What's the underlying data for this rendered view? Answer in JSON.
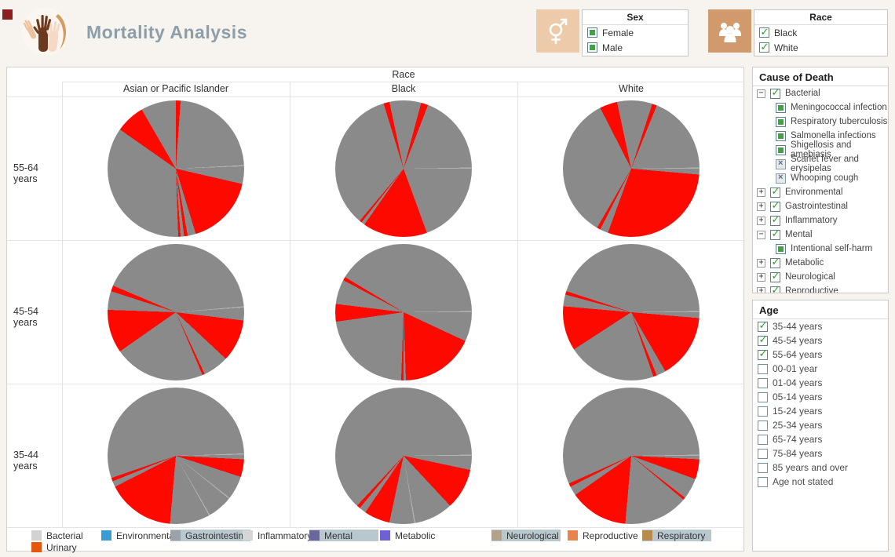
{
  "header": {
    "title": "Mortality Analysis"
  },
  "icons": {
    "logo": "hands-circle",
    "sex": "male-female-symbol",
    "race": "people-group",
    "expander_expanded": "−",
    "expander_collapsed": "+",
    "checkbox_checked": "✓",
    "checkbox_excluded": "×"
  },
  "filters": {
    "sex": {
      "title": "Sex",
      "items": [
        {
          "label": "Female",
          "state": "filled"
        },
        {
          "label": "Male",
          "state": "filled"
        }
      ]
    },
    "race": {
      "title": "Race",
      "items": [
        {
          "label": "Black",
          "state": "checked"
        },
        {
          "label": "White",
          "state": "checked"
        }
      ]
    }
  },
  "cause_panel": {
    "title": "Cause of Death",
    "items": [
      {
        "label": "Bacterial",
        "level": 0,
        "expander": "minus",
        "state": "checked"
      },
      {
        "label": "Meningococcal infection",
        "level": 1,
        "expander": "none",
        "state": "filled"
      },
      {
        "label": "Respiratory tuberculosis",
        "level": 1,
        "expander": "none",
        "state": "filled"
      },
      {
        "label": "Salmonella infections",
        "level": 1,
        "expander": "none",
        "state": "filled"
      },
      {
        "label": "Shigellosis and amebiasis",
        "level": 1,
        "expander": "none",
        "state": "filled"
      },
      {
        "label": "Scarlet fever and erysipelas",
        "level": 1,
        "expander": "none",
        "state": "xmark"
      },
      {
        "label": "Whooping cough",
        "level": 1,
        "expander": "none",
        "state": "xmark"
      },
      {
        "label": "Environmental",
        "level": 0,
        "expander": "plus",
        "state": "checked"
      },
      {
        "label": "Gastrointestinal",
        "level": 0,
        "expander": "plus",
        "state": "checked"
      },
      {
        "label": "Inflammatory",
        "level": 0,
        "expander": "plus",
        "state": "checked"
      },
      {
        "label": "Mental",
        "level": 0,
        "expander": "minus",
        "state": "checked"
      },
      {
        "label": "Intentional self-harm",
        "level": 1,
        "expander": "none",
        "state": "filled"
      },
      {
        "label": "Metabolic",
        "level": 0,
        "expander": "plus",
        "state": "checked"
      },
      {
        "label": "Neurological",
        "level": 0,
        "expander": "plus",
        "state": "checked"
      },
      {
        "label": "Reproductive",
        "level": 0,
        "expander": "plus",
        "state": "checked"
      }
    ]
  },
  "age_panel": {
    "title": "Age",
    "items": [
      {
        "label": "35-44 years",
        "state": "checked"
      },
      {
        "label": "45-54 years",
        "state": "checked"
      },
      {
        "label": "55-64 years",
        "state": "checked"
      },
      {
        "label": "00-01 year",
        "state": "empty"
      },
      {
        "label": "01-04 years",
        "state": "empty"
      },
      {
        "label": "05-14 years",
        "state": "empty"
      },
      {
        "label": "15-24 years",
        "state": "empty"
      },
      {
        "label": "25-34 years",
        "state": "empty"
      },
      {
        "label": "65-74 years",
        "state": "empty"
      },
      {
        "label": "75-84 years",
        "state": "empty"
      },
      {
        "label": "85 years and over",
        "state": "empty"
      },
      {
        "label": "Age not stated",
        "state": "empty"
      }
    ]
  },
  "legend": {
    "highlight_background": "#b9c7ce",
    "rows": [
      [
        {
          "label": "Bacterial",
          "color": "#d2d2d2",
          "highlighted": false
        },
        {
          "label": "Environmental",
          "color": "#3a9bd5",
          "highlighted": false
        },
        {
          "label": "Gastrointestinal",
          "color": "#9ba3a8",
          "highlighted": true
        },
        {
          "label": "Inflammatory",
          "color": "#d6d6d6",
          "highlighted": false
        },
        {
          "label": "Mental",
          "color": "#6a679b",
          "highlighted": true
        },
        {
          "label": "Metabolic",
          "color": "#7061d2",
          "highlighted": false
        },
        {
          "label": "Neurological",
          "color": "#b2a28b",
          "highlighted": true
        },
        {
          "label": "Reproductive",
          "color": "#e8824e",
          "highlighted": false
        },
        {
          "label": "Respiratory",
          "color": "#b98a4e",
          "highlighted": true
        }
      ],
      [
        {
          "label": "Urinary",
          "color": "#e5570e",
          "highlighted": false
        }
      ]
    ]
  },
  "chart_data": {
    "type": "pie",
    "title": "Mortality Analysis — share of deaths by cause; red slices = highlighted causes (Gastrointestinal, Mental, Neurological, Respiratory), gray = other causes",
    "facet_columns_header": "Race",
    "columns": [
      "Asian or Pacific Islander",
      "Black",
      "White"
    ],
    "rows": [
      "55-64 years",
      "45-54 years",
      "35-44 years"
    ],
    "colors": {
      "gray": "#8a8a8a",
      "red": "#fd0900",
      "line": "#b2b2b2"
    },
    "segment_format": "[start_deg, end_deg, color_key] clockwise from 12 o'clock",
    "pies": [
      {
        "row": "55-64 years",
        "col": "Asian or Pacific Islander",
        "segments": [
          [
            0,
            4,
            "red"
          ],
          [
            4,
            87,
            "gray"
          ],
          [
            87,
            88,
            "line"
          ],
          [
            88,
            103,
            "gray"
          ],
          [
            103,
            163,
            "red"
          ],
          [
            163,
            170,
            "gray"
          ],
          [
            170,
            173,
            "red"
          ],
          [
            173,
            176,
            "gray"
          ],
          [
            176,
            178,
            "red"
          ],
          [
            178,
            305,
            "gray"
          ],
          [
            305,
            330,
            "red"
          ],
          [
            330,
            360,
            "gray"
          ]
        ]
      },
      {
        "row": "55-64 years",
        "col": "Black",
        "segments": [
          [
            0,
            15,
            "gray"
          ],
          [
            15,
            21,
            "red"
          ],
          [
            21,
            89,
            "gray"
          ],
          [
            89,
            90,
            "line"
          ],
          [
            90,
            160,
            "gray"
          ],
          [
            160,
            215,
            "red"
          ],
          [
            215,
            218,
            "gray"
          ],
          [
            218,
            220,
            "red"
          ],
          [
            220,
            343,
            "gray"
          ],
          [
            343,
            348,
            "red"
          ],
          [
            348,
            360,
            "gray"
          ]
        ]
      },
      {
        "row": "55-64 years",
        "col": "White",
        "segments": [
          [
            0,
            18,
            "gray"
          ],
          [
            18,
            22,
            "red"
          ],
          [
            22,
            89,
            "gray"
          ],
          [
            89,
            90,
            "line"
          ],
          [
            90,
            95,
            "gray"
          ],
          [
            95,
            200,
            "red"
          ],
          [
            200,
            207,
            "gray"
          ],
          [
            207,
            210,
            "red"
          ],
          [
            210,
            333,
            "gray"
          ],
          [
            333,
            348,
            "red"
          ],
          [
            348,
            360,
            "gray"
          ]
        ]
      },
      {
        "row": "45-54 years",
        "col": "Asian or Pacific Islander",
        "segments": [
          [
            0,
            85,
            "gray"
          ],
          [
            85,
            86,
            "line"
          ],
          [
            86,
            97,
            "gray"
          ],
          [
            97,
            133,
            "red"
          ],
          [
            133,
            155,
            "gray"
          ],
          [
            155,
            157,
            "red"
          ],
          [
            157,
            235,
            "gray"
          ],
          [
            235,
            272,
            "red"
          ],
          [
            272,
            288,
            "gray"
          ],
          [
            288,
            293,
            "red"
          ],
          [
            293,
            360,
            "gray"
          ]
        ]
      },
      {
        "row": "45-54 years",
        "col": "Black",
        "segments": [
          [
            0,
            89,
            "gray"
          ],
          [
            89,
            90,
            "line"
          ],
          [
            90,
            115,
            "gray"
          ],
          [
            115,
            178,
            "red"
          ],
          [
            178,
            180,
            "gray"
          ],
          [
            180,
            182,
            "red"
          ],
          [
            182,
            262,
            "gray"
          ],
          [
            262,
            277,
            "red"
          ],
          [
            277,
            298,
            "gray"
          ],
          [
            298,
            301,
            "red"
          ],
          [
            301,
            360,
            "gray"
          ]
        ]
      },
      {
        "row": "45-54 years",
        "col": "White",
        "segments": [
          [
            0,
            89,
            "gray"
          ],
          [
            89,
            90,
            "line"
          ],
          [
            90,
            95,
            "gray"
          ],
          [
            95,
            150,
            "red"
          ],
          [
            150,
            158,
            "gray"
          ],
          [
            158,
            161,
            "red"
          ],
          [
            161,
            237,
            "gray"
          ],
          [
            237,
            275,
            "red"
          ],
          [
            275,
            285,
            "gray"
          ],
          [
            285,
            288,
            "red"
          ],
          [
            288,
            360,
            "gray"
          ]
        ]
      },
      {
        "row": "35-44 years",
        "col": "Asian or Pacific Islander",
        "segments": [
          [
            0,
            88,
            "gray"
          ],
          [
            88,
            89,
            "line"
          ],
          [
            89,
            93,
            "gray"
          ],
          [
            93,
            108,
            "red"
          ],
          [
            108,
            128,
            "gray"
          ],
          [
            128,
            129,
            "line"
          ],
          [
            129,
            150,
            "gray"
          ],
          [
            150,
            151,
            "line"
          ],
          [
            151,
            185,
            "gray"
          ],
          [
            185,
            243,
            "red"
          ],
          [
            243,
            248,
            "gray"
          ],
          [
            248,
            251,
            "red"
          ],
          [
            251,
            360,
            "gray"
          ]
        ]
      },
      {
        "row": "35-44 years",
        "col": "Black",
        "segments": [
          [
            0,
            89,
            "gray"
          ],
          [
            89,
            90,
            "line"
          ],
          [
            90,
            102,
            "gray"
          ],
          [
            102,
            137,
            "red"
          ],
          [
            137,
            170,
            "gray"
          ],
          [
            170,
            171,
            "line"
          ],
          [
            171,
            192,
            "gray"
          ],
          [
            192,
            214,
            "red"
          ],
          [
            214,
            220,
            "gray"
          ],
          [
            220,
            223,
            "red"
          ],
          [
            223,
            360,
            "gray"
          ]
        ]
      },
      {
        "row": "35-44 years",
        "col": "White",
        "segments": [
          [
            0,
            89,
            "gray"
          ],
          [
            89,
            90,
            "line"
          ],
          [
            90,
            93,
            "gray"
          ],
          [
            93,
            110,
            "red"
          ],
          [
            110,
            128,
            "gray"
          ],
          [
            128,
            130,
            "red"
          ],
          [
            130,
            185,
            "gray"
          ],
          [
            185,
            235,
            "red"
          ],
          [
            235,
            243,
            "gray"
          ],
          [
            243,
            246,
            "red"
          ],
          [
            246,
            360,
            "gray"
          ]
        ]
      }
    ]
  }
}
